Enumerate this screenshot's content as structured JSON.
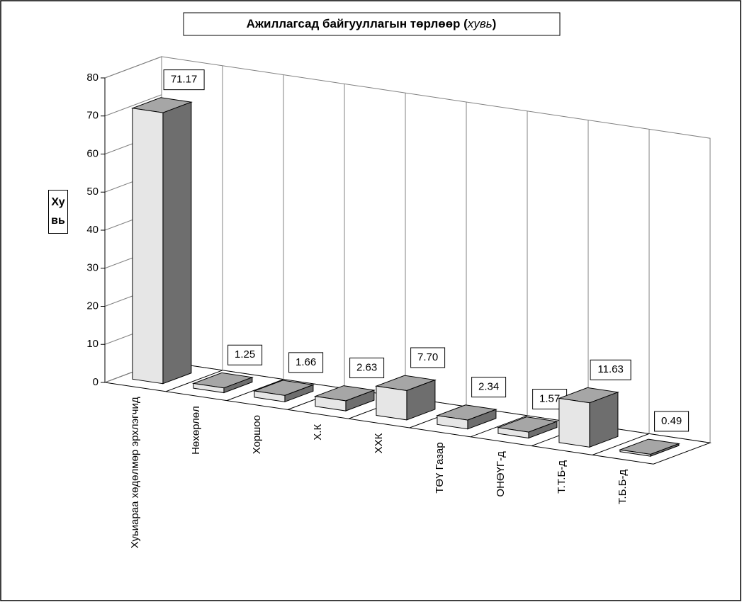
{
  "chart_data": {
    "type": "bar3d",
    "title_parts": [
      "Ажиллагсад байгууллагын төрлөөр (",
      "хувь",
      ")"
    ],
    "y_label": "Хувь",
    "categories": [
      "Хуьиараа хөдөлмөр эрхлэгчид",
      "Нөхөрлөл",
      "Хоршоо",
      "Х.К",
      "ХХК",
      "ТӨҮ Газар",
      "ОНӨҮГ-д",
      "Т.Т.Б-д",
      "Т.Б.Б-д"
    ],
    "values": [
      71.17,
      1.25,
      1.66,
      2.63,
      7.7,
      2.34,
      1.57,
      11.63,
      0.49
    ],
    "value_labels": [
      "71.17",
      "1.25",
      "1.66",
      "2.63",
      "7.70",
      "2.34",
      "1.57",
      "11.63",
      "0.49"
    ],
    "ylim": [
      0,
      80
    ],
    "yticks": [
      0,
      10,
      20,
      30,
      40,
      50,
      60,
      70,
      80
    ],
    "colors": {
      "front": "#e6e6e6",
      "side": "#6e6e6e",
      "top": "#a6a6a6"
    }
  }
}
